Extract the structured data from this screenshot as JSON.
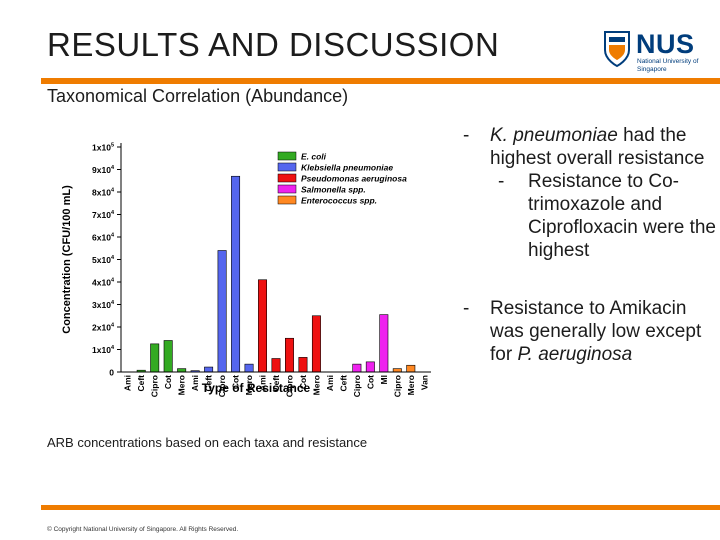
{
  "header": {
    "title": "RESULTS AND DISCUSSION",
    "subtitle": "Taxonomical Correlation (Abundance)"
  },
  "logo": {
    "name": "NUS",
    "tagline": "National University of Singapore"
  },
  "bullets": {
    "b1_italic": "K. pneumoniae",
    "b1_rest": " had the highest overall resistance",
    "b2": "Resistance to Co-trimoxazole and Ciprofloxacin were the highest",
    "b3_pre": "Resistance to Amikacin was generally low except for ",
    "b3_italic": "P. aeruginosa",
    "dash": "-"
  },
  "caption": "ARB concentrations based on each taxa and resistance",
  "footer": {
    "copyright": "© Copyright National University of Singapore. All Rights Reserved."
  },
  "colors": {
    "accent": "#ef7c00",
    "brand": "#003d7c"
  },
  "chart_data": {
    "type": "bar",
    "xlabel": "Type of Resistance",
    "ylabel": "Concentration (CFU/100 mL)",
    "ylim": [
      0,
      100000
    ],
    "y_ticks": [
      {
        "value": 0,
        "base": "0",
        "exp": ""
      },
      {
        "value": 10000,
        "base": "1x10",
        "exp": "4"
      },
      {
        "value": 20000,
        "base": "2x10",
        "exp": "4"
      },
      {
        "value": 30000,
        "base": "3x10",
        "exp": "4"
      },
      {
        "value": 40000,
        "base": "4x10",
        "exp": "4"
      },
      {
        "value": 50000,
        "base": "5x10",
        "exp": "4"
      },
      {
        "value": 60000,
        "base": "6x10",
        "exp": "4"
      },
      {
        "value": 70000,
        "base": "7x10",
        "exp": "4"
      },
      {
        "value": 80000,
        "base": "8x10",
        "exp": "4"
      },
      {
        "value": 90000,
        "base": "9x10",
        "exp": "4"
      },
      {
        "value": 100000,
        "base": "1x10",
        "exp": "5"
      }
    ],
    "categories": [
      "Ami",
      "Ceft",
      "Cipro",
      "Cot",
      "Mero",
      "Ami",
      "Ceft",
      "Cipro",
      "Cot",
      "Mero",
      "Ami",
      "Ceft",
      "Cipro",
      "Cot",
      "Mero",
      "Ami",
      "Ceft",
      "Cipro",
      "Cot",
      "Ml",
      "Cipro",
      "Mero",
      "Van"
    ],
    "bars": [
      {
        "category_index": 0,
        "value": 0,
        "series": 0
      },
      {
        "category_index": 1,
        "value": 800,
        "series": 0
      },
      {
        "category_index": 2,
        "value": 12500,
        "series": 0
      },
      {
        "category_index": 3,
        "value": 14000,
        "series": 0
      },
      {
        "category_index": 4,
        "value": 1500,
        "series": 0
      },
      {
        "category_index": 5,
        "value": 600,
        "series": 1
      },
      {
        "category_index": 6,
        "value": 2200,
        "series": 1
      },
      {
        "category_index": 7,
        "value": 54000,
        "series": 1
      },
      {
        "category_index": 8,
        "value": 87000,
        "series": 1
      },
      {
        "category_index": 9,
        "value": 3500,
        "series": 1
      },
      {
        "category_index": 10,
        "value": 41000,
        "series": 2
      },
      {
        "category_index": 11,
        "value": 6000,
        "series": 2
      },
      {
        "category_index": 12,
        "value": 15000,
        "series": 2
      },
      {
        "category_index": 13,
        "value": 6500,
        "series": 2
      },
      {
        "category_index": 14,
        "value": 25000,
        "series": 2
      },
      {
        "category_index": 17,
        "value": 3500,
        "series": 3
      },
      {
        "category_index": 18,
        "value": 4500,
        "series": 3
      },
      {
        "category_index": 19,
        "value": 25500,
        "series": 3
      },
      {
        "category_index": 20,
        "value": 1500,
        "series": 4
      },
      {
        "category_index": 21,
        "value": 3000,
        "series": 4
      }
    ],
    "series": [
      {
        "name": "E. coli",
        "color": "#33aa22"
      },
      {
        "name": "Klebsiella pneumoniae",
        "color": "#5566ee"
      },
      {
        "name": "Pseudomonas aeruginosa",
        "color": "#ee1111"
      },
      {
        "name": "Salmonella spp.",
        "color": "#ee22ee"
      },
      {
        "name": "Enterococcus spp.",
        "color": "#ff8822"
      }
    ],
    "legend_position": "top-right",
    "grid": false
  }
}
